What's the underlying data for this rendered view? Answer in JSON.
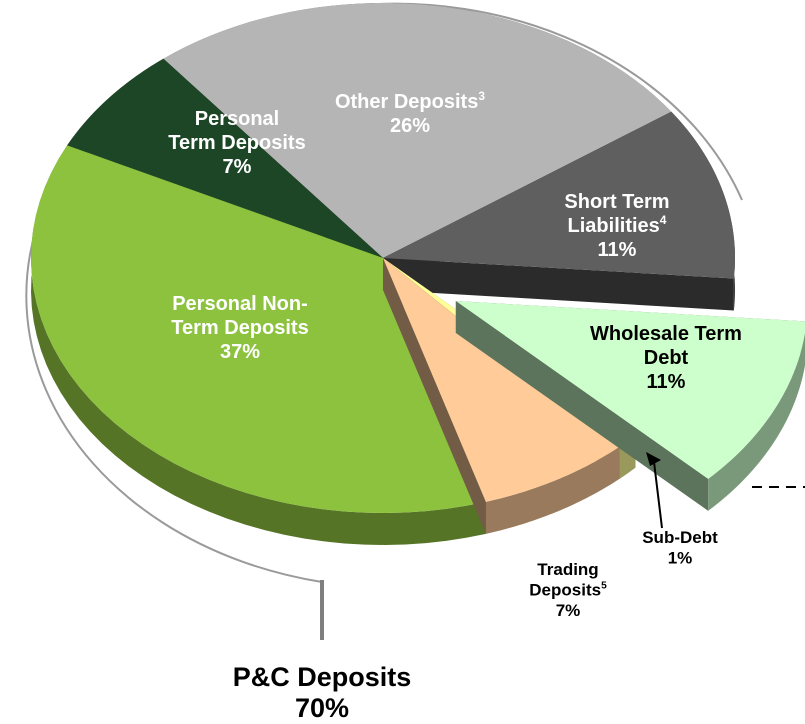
{
  "chart_data": {
    "type": "pie",
    "categories": [
      [
        "Personal",
        "Term Deposits"
      ],
      [
        "Other Deposits"
      ],
      [
        "Short Term",
        "Liabilities"
      ],
      [
        "Wholesale Term",
        "Debt"
      ],
      [
        "Sub-Debt"
      ],
      [
        "Trading",
        "Deposits"
      ],
      [
        "Personal Non-",
        "Term Deposits"
      ]
    ],
    "footnotes": [
      null,
      "3",
      "4",
      null,
      null,
      "5",
      null
    ],
    "values": [
      7,
      26,
      11,
      11,
      1,
      7,
      37
    ],
    "value_labels": [
      "7%",
      "26%",
      "11%",
      "11%",
      "1%",
      "7%",
      "37%"
    ],
    "colors": [
      "#1d4626",
      "#b5b5b5",
      "#5f5f5f",
      "#ccffcc",
      "#ffff99",
      "#ffcc99",
      "#8dc23f"
    ],
    "exploded": [
      false,
      false,
      false,
      true,
      false,
      false,
      false
    ],
    "annotation": {
      "text": "P&C Deposits",
      "value": 70,
      "label": "70%"
    }
  }
}
